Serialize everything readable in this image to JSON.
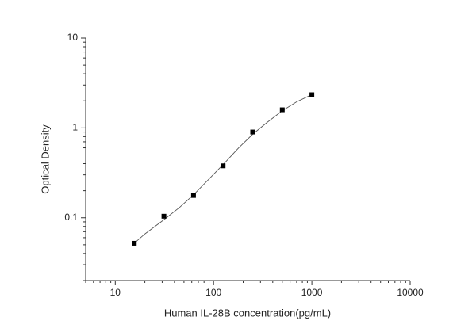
{
  "chart_data": {
    "type": "scatter",
    "x_label": "Human IL-28B concentration(pg/mL)",
    "y_label": "Optical Density",
    "x": [
      15.6,
      31.25,
      62.5,
      125,
      250,
      500,
      1000
    ],
    "values": [
      0.052,
      0.104,
      0.177,
      0.378,
      0.9,
      1.59,
      2.34
    ],
    "color": "#000000",
    "fit": {
      "x": [
        15.6,
        20,
        31.25,
        45,
        62.5,
        90,
        125,
        180,
        250,
        350,
        500,
        700,
        1000
      ],
      "values": [
        0.052,
        0.066,
        0.095,
        0.13,
        0.18,
        0.27,
        0.39,
        0.6,
        0.85,
        1.15,
        1.55,
        1.95,
        2.35
      ],
      "color": "#555555"
    },
    "xlog": true,
    "ylog": true,
    "xlim": [
      5,
      10000
    ],
    "xticks": [
      10,
      100,
      1000,
      10000
    ],
    "ylim": [
      0.02,
      10
    ],
    "yticks": [
      0.1,
      1,
      10
    ]
  }
}
